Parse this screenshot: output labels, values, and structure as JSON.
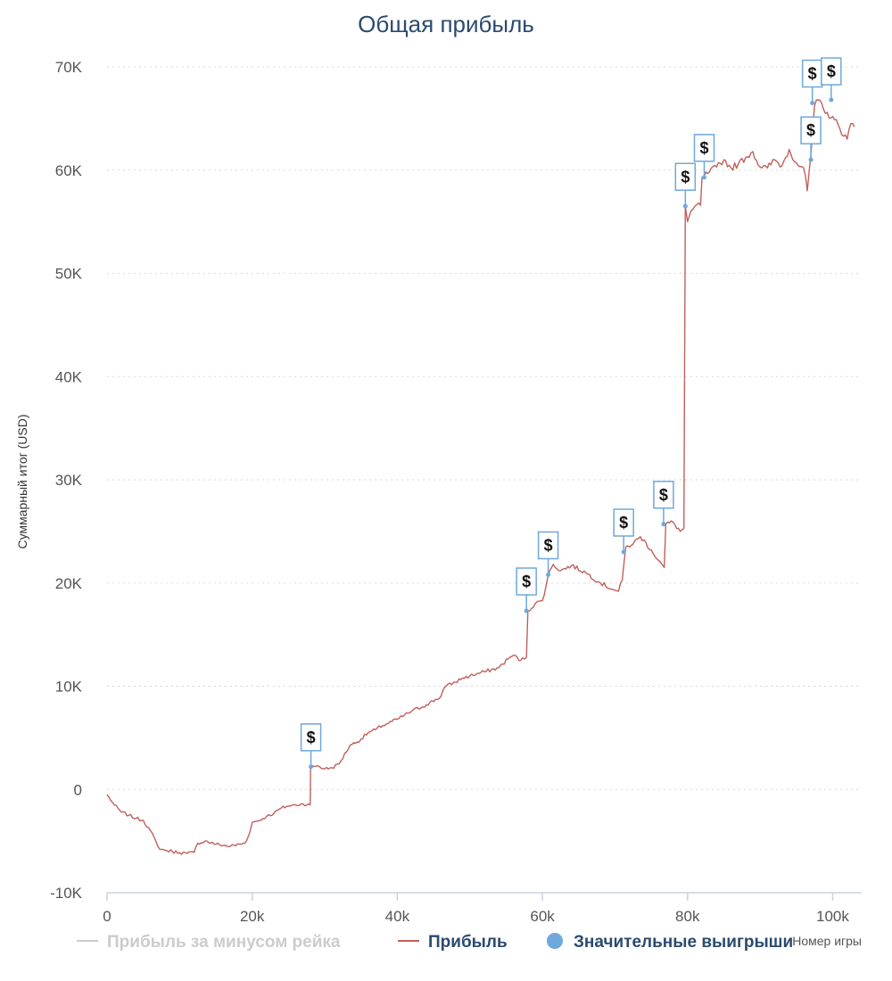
{
  "chart_data": {
    "type": "line",
    "title": "Общая прибыль",
    "ylabel": "Суммарный итог (USD)",
    "xlabel": "Номер игры",
    "xlim": [
      0,
      104000
    ],
    "ylim": [
      -10000,
      70000
    ],
    "yticks": [
      -10000,
      0,
      10000,
      20000,
      30000,
      40000,
      50000,
      60000,
      70000
    ],
    "ytick_labels": [
      "-10K",
      "0",
      "10K",
      "20K",
      "30K",
      "40K",
      "50K",
      "60K",
      "70K"
    ],
    "xticks": [
      0,
      20000,
      40000,
      60000,
      80000,
      100000
    ],
    "xtick_labels": [
      "0",
      "20k",
      "40k",
      "60k",
      "80k",
      "100k"
    ],
    "grid": true,
    "legend_position": "bottom",
    "series": [
      {
        "name": "Прибыль за минусом рейка",
        "color": "#cccccc",
        "visible": false,
        "x": [],
        "y": []
      },
      {
        "name": "Прибыль",
        "color": "#c0605c",
        "visible": true,
        "x": [
          0,
          1000,
          2000,
          3000,
          4000,
          5000,
          6000,
          7000,
          7500,
          8000,
          9000,
          10000,
          11000,
          12000,
          12500,
          13500,
          15000,
          17000,
          19000,
          19500,
          20000,
          21000,
          22000,
          23000,
          24000,
          25000,
          26000,
          27000,
          28000,
          28050,
          29000,
          30000,
          31000,
          32000,
          33500,
          34500,
          36000,
          37000,
          38000,
          40000,
          42000,
          44000,
          46000,
          46500,
          48000,
          49000,
          50000,
          52000,
          54000,
          55500,
          56000,
          57000,
          57800,
          58000,
          59000,
          60000,
          61000,
          61500,
          62500,
          64000,
          66000,
          68000,
          70000,
          70500,
          71000,
          71500,
          72500,
          73500,
          75000,
          76000,
          76800,
          77000,
          78000,
          79000,
          79500,
          79700,
          80000,
          81000,
          81800,
          82000,
          83000,
          84000,
          85000,
          86000,
          87000,
          88000,
          89000,
          90000,
          91000,
          92000,
          93000,
          94000,
          95000,
          96000,
          96500,
          97000,
          97500,
          98000,
          99000,
          100000,
          101000,
          102000,
          102500,
          103000
        ],
        "y": [
          -500,
          -1500,
          -2200,
          -2500,
          -2800,
          -3000,
          -4000,
          -5500,
          -5800,
          -5900,
          -6000,
          -6100,
          -6200,
          -6100,
          -5200,
          -5000,
          -5300,
          -5500,
          -5200,
          -4500,
          -3200,
          -3000,
          -2600,
          -2300,
          -1800,
          -1600,
          -1500,
          -1400,
          -1500,
          2200,
          2300,
          2000,
          2100,
          2500,
          4300,
          4600,
          5500,
          5800,
          6200,
          6800,
          7600,
          8200,
          9000,
          9900,
          10400,
          10800,
          11000,
          11400,
          11800,
          12800,
          13000,
          12500,
          12800,
          17300,
          18000,
          18300,
          21200,
          21800,
          21200,
          21700,
          21000,
          20000,
          19300,
          19200,
          20300,
          23500,
          23800,
          24500,
          23200,
          22200,
          21500,
          25700,
          25900,
          25000,
          25300,
          56500,
          55000,
          56500,
          56600,
          59300,
          59800,
          60300,
          61000,
          60200,
          60600,
          61200,
          61800,
          60300,
          60200,
          61000,
          60400,
          62000,
          60700,
          60200,
          58000,
          61500,
          66200,
          66800,
          65500,
          65200,
          64000,
          63000,
          64500,
          64200
        ]
      }
    ],
    "significant_wins": {
      "name": "Значительные выигрыши",
      "color": "#6fa8dc",
      "flag_label": "$",
      "x": [
        28100,
        57800,
        60800,
        71200,
        76700,
        79700,
        82300,
        97000,
        97200,
        99800
      ],
      "y": [
        2200,
        17300,
        20800,
        23000,
        25700,
        56500,
        59300,
        61000,
        66500,
        66800
      ]
    }
  },
  "legend": {
    "items": [
      {
        "label": "Прибыль за минусом рейка",
        "color": "#cccccc",
        "text_color": "#cccccc"
      },
      {
        "label": "Прибыль",
        "color": "#c0605c",
        "text_color": "#2b4a6f"
      },
      {
        "label": "Значительные выигрыши",
        "color": "#6fa8dc",
        "text_color": "#2b4a6f"
      }
    ]
  }
}
